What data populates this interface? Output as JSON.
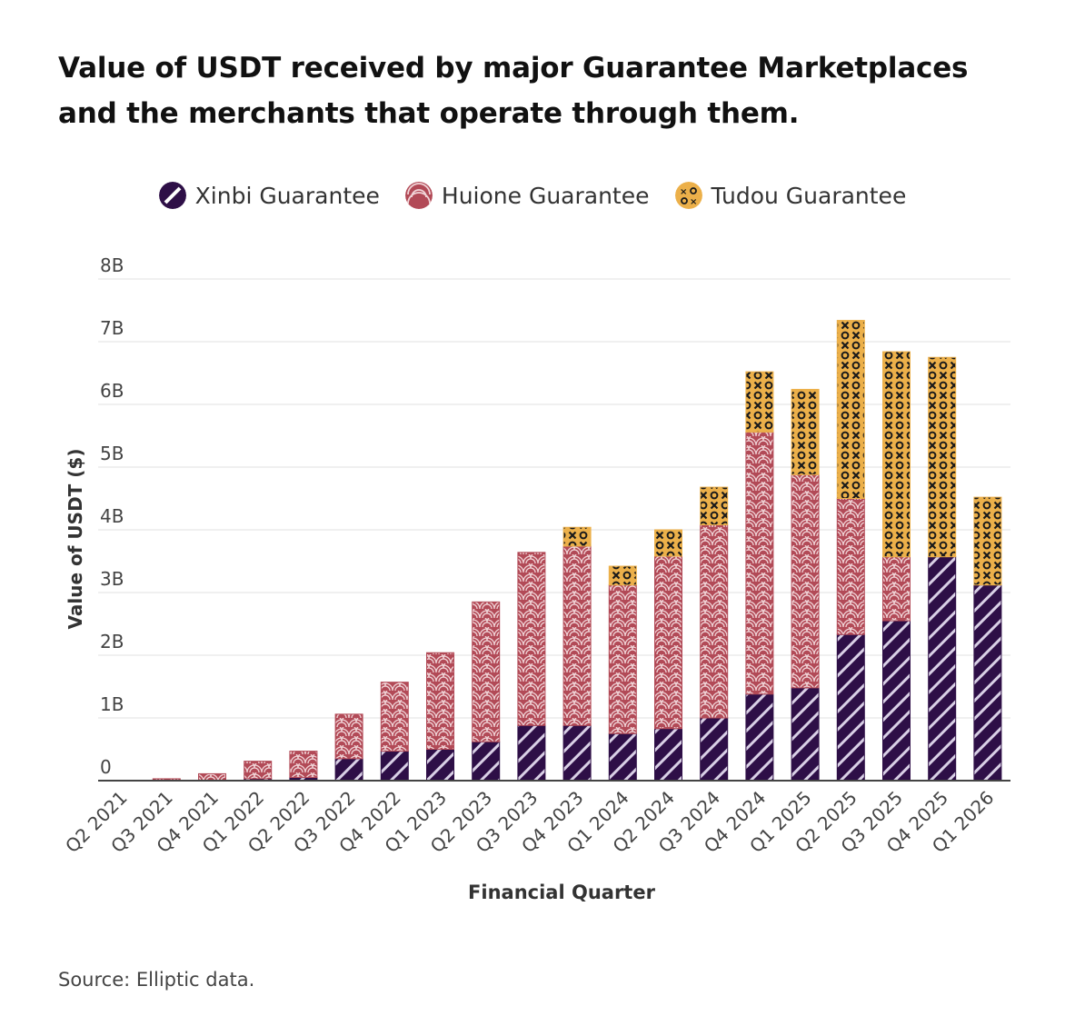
{
  "title": "Value of USDT received by major Guarantee Marketplaces and the merchants that operate through them.",
  "source": "Source: Elliptic data.",
  "colors": {
    "xinbi": "#2e0f47",
    "huione": "#b24a57",
    "tudou": "#ecb04a",
    "grid": "#e6e6e6",
    "axis": "#444444"
  },
  "chart_data": {
    "type": "bar",
    "stacked": true,
    "title": "Value of USDT received by major Guarantee Marketplaces and the merchants that operate through them.",
    "xlabel": "Financial Quarter",
    "ylabel": "Value of USDT ($)",
    "ylim": [
      0,
      8000000000
    ],
    "yticks": [
      {
        "value": 0,
        "label": "0"
      },
      {
        "value": 1000000000,
        "label": "1B"
      },
      {
        "value": 2000000000,
        "label": "2B"
      },
      {
        "value": 3000000000,
        "label": "3B"
      },
      {
        "value": 4000000000,
        "label": "4B"
      },
      {
        "value": 5000000000,
        "label": "5B"
      },
      {
        "value": 6000000000,
        "label": "6B"
      },
      {
        "value": 7000000000,
        "label": "7B"
      },
      {
        "value": 8000000000,
        "label": "8B"
      }
    ],
    "grid": true,
    "legend_position": "top-center",
    "categories": [
      "Q2 2021",
      "Q3 2021",
      "Q4 2021",
      "Q1 2022",
      "Q2 2022",
      "Q3 2022",
      "Q4 2022",
      "Q1 2023",
      "Q2 2023",
      "Q3 2023",
      "Q4 2023",
      "Q1 2024",
      "Q2 2024",
      "Q3 2024",
      "Q4 2024",
      "Q1 2025",
      "Q2 2025",
      "Q3 2025",
      "Q4 2025",
      "Q1 2026"
    ],
    "series": [
      {
        "name": "Xinbi Guarantee",
        "pattern": "diagonal-stripes",
        "values": [
          0,
          0,
          0,
          30000000,
          50000000,
          350000000,
          470000000,
          500000000,
          620000000,
          880000000,
          880000000,
          750000000,
          830000000,
          1000000000,
          1380000000,
          1480000000,
          2330000000,
          2550000000,
          3570000000,
          3120000000
        ]
      },
      {
        "name": "Huione Guarantee",
        "pattern": "seigaiha-waves",
        "values": [
          0,
          30000000,
          110000000,
          280000000,
          420000000,
          710000000,
          1100000000,
          1540000000,
          2230000000,
          2760000000,
          2860000000,
          2370000000,
          2750000000,
          3080000000,
          4180000000,
          3400000000,
          2170000000,
          1020000000,
          0,
          0
        ]
      },
      {
        "name": "Tudou Guarantee",
        "pattern": "x-and-o",
        "values": [
          0,
          0,
          0,
          0,
          0,
          0,
          0,
          0,
          0,
          0,
          300000000,
          300000000,
          420000000,
          600000000,
          960000000,
          1360000000,
          2840000000,
          3270000000,
          3180000000,
          1400000000
        ]
      }
    ]
  }
}
